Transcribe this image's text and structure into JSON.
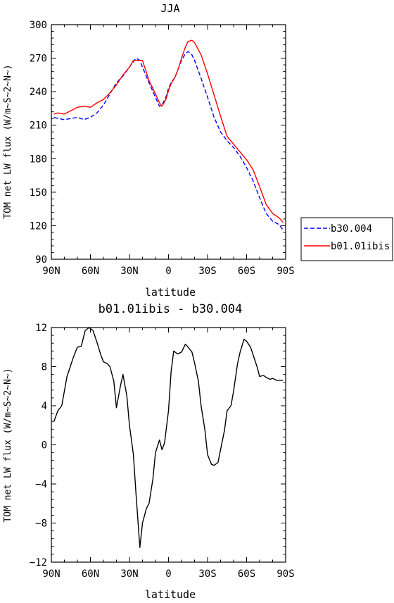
{
  "chart_data": [
    {
      "type": "line",
      "title": "JJA",
      "xlabel": "latitude",
      "ylabel": "TOM net LW flux (W/m~S~2~N~)",
      "x_ticks": [
        "90N",
        "60N",
        "30N",
        "0",
        "30S",
        "60S",
        "90S"
      ],
      "x_tick_values": [
        90,
        60,
        30,
        0,
        -30,
        -60,
        -90
      ],
      "xlim": [
        90,
        -90
      ],
      "ylim": [
        90,
        300
      ],
      "y_ticks": [
        90,
        120,
        150,
        180,
        210,
        240,
        270,
        300
      ],
      "legend_position": "right",
      "x": [
        88,
        85,
        80,
        75,
        70,
        65,
        60,
        55,
        50,
        45,
        40,
        35,
        30,
        27,
        25,
        22,
        20,
        15,
        10,
        7,
        5,
        2,
        0,
        -2,
        -5,
        -8,
        -10,
        -13,
        -15,
        -18,
        -20,
        -25,
        -30,
        -35,
        -40,
        -45,
        -50,
        -55,
        -60,
        -65,
        -70,
        -75,
        -80,
        -85,
        -88
      ],
      "series": [
        {
          "name": "b30.004",
          "color": "#0000ff",
          "dash": true,
          "values": [
            217,
            216,
            215,
            216,
            217,
            215,
            217,
            221,
            228,
            238,
            248,
            254,
            262,
            267,
            270,
            268,
            262,
            248,
            235,
            227,
            228,
            235,
            243,
            248,
            253,
            262,
            268,
            274,
            276,
            273,
            268,
            252,
            235,
            217,
            204,
            196,
            190,
            182,
            172,
            160,
            145,
            131,
            124,
            121,
            116
          ]
        },
        {
          "name": "b01.01ibis",
          "color": "#ff0000",
          "dash": false,
          "values": [
            220,
            221,
            220,
            223,
            226,
            227,
            226,
            230,
            233,
            239,
            246,
            255,
            262,
            268,
            268,
            268,
            268,
            250,
            238,
            230,
            227,
            233,
            241,
            247,
            253,
            262,
            270,
            280,
            285,
            286,
            284,
            273,
            256,
            237,
            218,
            200,
            193,
            186,
            179,
            170,
            155,
            139,
            131,
            127,
            123
          ]
        }
      ]
    },
    {
      "type": "line",
      "title": "b01.01ibis - b30.004",
      "xlabel": "latitude",
      "ylabel": "TOM net LW flux (W/m~S~2~N~)",
      "x_ticks": [
        "90N",
        "60N",
        "30N",
        "0",
        "30S",
        "60S",
        "90S"
      ],
      "x_tick_values": [
        90,
        60,
        30,
        0,
        -30,
        -60,
        -90
      ],
      "xlim": [
        90,
        -90
      ],
      "ylim": [
        -12,
        12
      ],
      "y_ticks": [
        -12,
        -8,
        -4,
        0,
        4,
        8,
        12
      ],
      "x": [
        88,
        85,
        82,
        78,
        73,
        70,
        67,
        64,
        61,
        58,
        55,
        52,
        50,
        47,
        45,
        42,
        40,
        37,
        35,
        32,
        30,
        27,
        25,
        22,
        20,
        17,
        15,
        12,
        10,
        7,
        5,
        3,
        0,
        -2,
        -4,
        -7,
        -10,
        -13,
        -15,
        -18,
        -20,
        -23,
        -25,
        -28,
        -30,
        -33,
        -35,
        -38,
        -40,
        -43,
        -45,
        -48,
        -50,
        -53,
        -55,
        -58,
        -60,
        -63,
        -65,
        -68,
        -70,
        -73,
        -75,
        -78,
        -80,
        -83,
        -85,
        -88
      ],
      "series": [
        {
          "name": "",
          "color": "#000000",
          "dash": false,
          "values": [
            2.4,
            3.5,
            4.0,
            7.0,
            9.0,
            10.0,
            10.1,
            11.7,
            12.0,
            11.7,
            10.5,
            9.2,
            8.5,
            8.3,
            8.0,
            6.5,
            3.8,
            6.0,
            7.2,
            5.0,
            2.0,
            -1.0,
            -5.0,
            -10.5,
            -8.0,
            -6.5,
            -6.0,
            -3.5,
            -0.8,
            0.5,
            -0.5,
            0.2,
            3.5,
            7.5,
            9.6,
            9.3,
            9.5,
            10.3,
            10.0,
            9.5,
            8.4,
            6.5,
            4.0,
            1.5,
            -1.0,
            -2.0,
            -2.1,
            -1.8,
            -0.5,
            1.5,
            3.5,
            4.0,
            5.5,
            8.3,
            9.5,
            10.8,
            10.6,
            10.0,
            9.2,
            8.0,
            7.0,
            7.1,
            6.9,
            6.7,
            6.8,
            6.6,
            6.6,
            6.6
          ]
        }
      ]
    }
  ]
}
